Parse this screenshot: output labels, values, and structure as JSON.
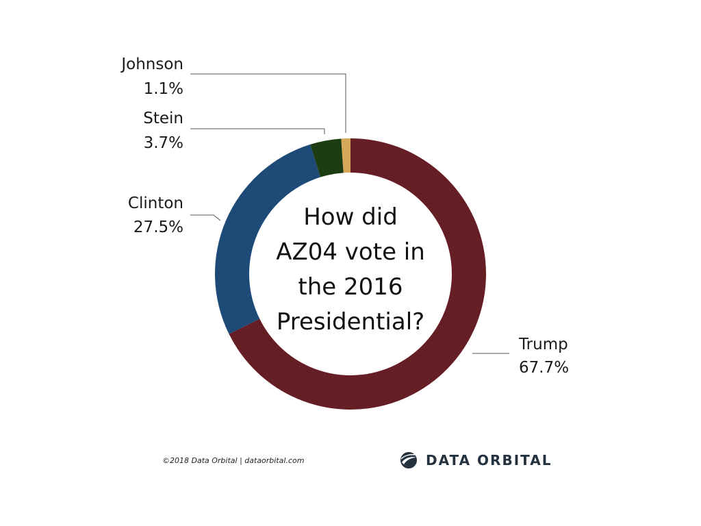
{
  "chart_data": {
    "type": "pie",
    "variant": "donut",
    "title": "How did AZ04 vote in the 2016 Presidential?",
    "title_lines": [
      "How did",
      "AZ04 vote in",
      "the 2016",
      "Presidential?"
    ],
    "slices": [
      {
        "name": "Trump",
        "value": 67.7,
        "label": "67.7%",
        "color": "#661e25"
      },
      {
        "name": "Clinton",
        "value": 27.5,
        "label": "27.5%",
        "color": "#1e4a78"
      },
      {
        "name": "Stein",
        "value": 3.7,
        "label": "3.7%",
        "color": "#1c3d11"
      },
      {
        "name": "Johnson",
        "value": 1.1,
        "label": "1.1%",
        "color": "#d6a95a"
      }
    ],
    "start": "top, clockwise",
    "legend": "none"
  },
  "footer": {
    "credit": "©2018 Data Orbital | dataorbital.com",
    "brand": "DATA ORBITAL",
    "logo_icon": "globe-orbit-icon"
  },
  "colors": {
    "leader_line": "#555555",
    "brand_text": "#24323f"
  }
}
